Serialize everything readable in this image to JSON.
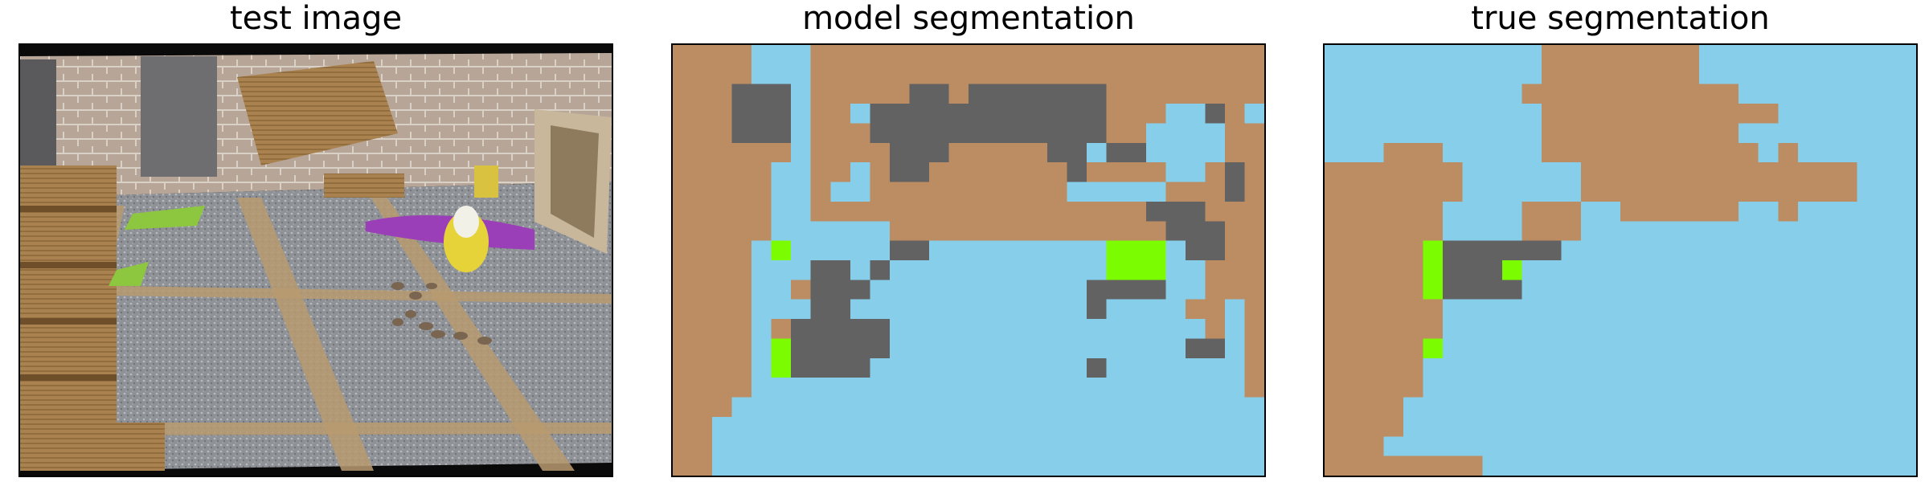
{
  "figure": {
    "panels": [
      {
        "title": "test image"
      },
      {
        "title": "model segmentation"
      },
      {
        "title": "true segmentation"
      }
    ]
  },
  "colors": {
    "light_blue": "#87ceeb",
    "tan": "#bc8c62",
    "dark_gray": "#626262",
    "lime": "#7cfc00",
    "photo_bg": "#0a0a0a"
  },
  "chart_data": [
    {
      "type": "heatmap",
      "title": "model segmentation",
      "grid_rows": 22,
      "grid_cols": 30,
      "palette": {
        "B": "#87ceeb",
        "T": "#bc8c62",
        "G": "#626262",
        "L": "#7cfc00"
      },
      "rows": [
        "TTTTBBBTTTTTTTTTTTTTTTTTTTTTTT",
        "TTTTBBBTTTTTTTTTTTTTTTTTTTTTTT",
        "TTTGGGBTTTTTGGTGGGGGGGTTTTTTTT",
        "TTTGGGBTTBGGGGGGGGGGGGTTTBBGTB",
        "TTTGGGBTTTGGGGGGGGGGGGTTBBBBTT",
        "TTTTTTBTTTTGGGTTTTTGGBGGBBBBTT",
        "TTTTTBBTTBTGGTTTTTTTGTTTTBBTGT",
        "TTTTTBBTBBTTTTTTTTTTBBBBBTTTGT",
        "TTTTTBBTTTTTTTTTTTTTTTTTGGGTTT",
        "TTTTTBBBBBBTTTTTTTTTTTTTTGGGTT",
        "TTTTBLBBBBBGGBBBBBBBBBLLLBGGTT",
        "TTTTBBBGGBGBBBBBBBBBBBLLLBBTTT",
        "TTTTBBTGGGBBBBBBBBBBBGGGGBBTTT",
        "TTTTBBBGGBBBBBBBBBBBBGBBBBTTBT",
        "TTTTBTGGGGGBBBBBBBBBBBBBBBBTBT",
        "TTTTBLGGGGGBBBBBBBBBBBBBBBGGBT",
        "TTTTBLGGGGBBBBBBBBBBBGBBBBBBBT",
        "TTTTBBBBBBBBBBBBBBBBBBBBBBBBBT",
        "TTTBBBBBBBBBBBBBBBBBBBBBBBBBBB",
        "TTBBBBBBBBBBBBBBBBBBBBBBBBBBBB",
        "TTBBBBBBBBBBBBBBBBBBBBBBBBBBBB",
        "TTBBBBBBBBBBBBBBBBBBBBBBBBBBBB"
      ]
    },
    {
      "type": "heatmap",
      "title": "true segmentation",
      "grid_rows": 22,
      "grid_cols": 30,
      "palette": {
        "B": "#87ceeb",
        "T": "#bc8c62",
        "G": "#626262",
        "L": "#7cfc00"
      },
      "rows": [
        "BBBBBBBBBBBTTTTTTTTBBBBBBBBBBB",
        "BBBBBBBBBBBTTTTTTTTBBBBBBBBBBB",
        "BBBBBBBBBBTTTTTTTTTTTBBBBBBBBB",
        "BBBBBBBBBBBTTTTTTTTTTTTBBBBBBB",
        "BBBBBBBBBBBTTTTTTTTTTBBBBBBBBB",
        "BBBTTTBBBBBTTTTTTTTTTTBTBBBBBB",
        "TTTTTTTBBBBBBTTTTTTTTTTTTTTBBB",
        "TTTTTTTBBBBBBTTTTTTTTTTTTTTBBB",
        "TTTTTTBBBBTTTBBTTTTTTBBTBBBBBB",
        "TTTTTTBBBBTTTBBBBBBBBBBBBBBBBB",
        "TTTTTLGGGGGGBBBBBBBBBBBBBBBBBB",
        "TTTTTLGGGLBBBBBBBBBBBBBBBBBBBB",
        "TTTTTLGGGGBBBBBBBBBBBBBBBBBBBB",
        "TTTTTTBBBBBBBBBBBBBBBBBBBBBBBB",
        "TTTTTTBBBBBBBBBBBBBBBBBBBBBBBB",
        "TTTTTLBBBBBBBBBBBBBBBBBBBBBBBB",
        "TTTTTBBBBBBBBBBBBBBBBBBBBBBBBB",
        "TTTTTBBBBBBBBBBBBBBBBBBBBBBBBB",
        "TTTTBBBBBBBBBBBBBBBBBBBBBBBBBB",
        "TTTTBBBBBBBBBBBBBBBBBBBBBBBBBB",
        "TTTBBBBBBBBBBBBBBBBBBBBBBBBBBB",
        "TTTTTTTTBBBBBBBBBBBBBBBBBBBBBB"
      ]
    }
  ]
}
